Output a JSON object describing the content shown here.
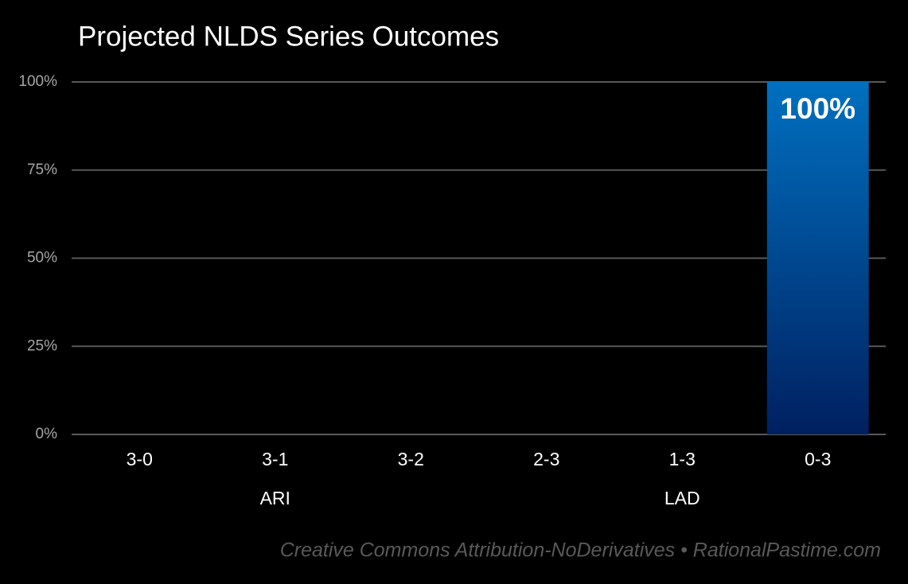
{
  "chart_data": {
    "type": "bar",
    "title": "Projected NLDS Series Outcomes",
    "categories": [
      "3-0",
      "3-1",
      "3-2",
      "2-3",
      "1-3",
      "0-3"
    ],
    "values": [
      0,
      0,
      0,
      0,
      0,
      100
    ],
    "value_labels": [
      null,
      null,
      null,
      null,
      null,
      "100%"
    ],
    "color": "#0070c0",
    "groups": [
      {
        "name": "ARI"
      },
      {
        "name": "LAD"
      }
    ],
    "ylim": [
      0,
      100
    ],
    "yticks": [
      {
        "value": 0,
        "label": "0%"
      },
      {
        "value": 25,
        "label": "25%"
      },
      {
        "value": 50,
        "label": "50%"
      },
      {
        "value": 75,
        "label": "75%"
      },
      {
        "value": 100,
        "label": "100%"
      }
    ],
    "grid": true,
    "footer": "Creative Commons Attribution-NoDerivatives • RationalPastime.com"
  }
}
